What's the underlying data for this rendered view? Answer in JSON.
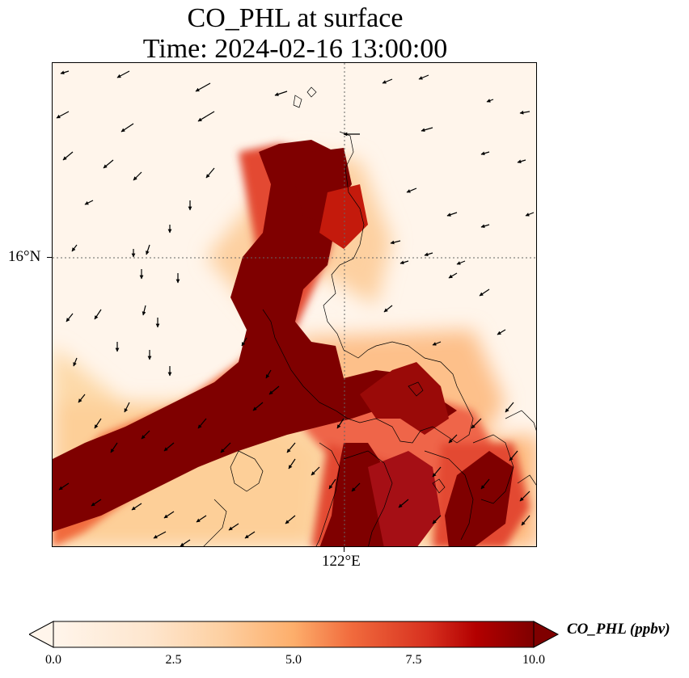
{
  "title": {
    "line1": "CO_PHL at surface",
    "line2": "Time: 2024-02-16 13:00:00"
  },
  "axes": {
    "lat_tick": "16°N",
    "lon_tick": "122°E"
  },
  "colorbar": {
    "label": "CO_PHL (ppbv)",
    "ticks": [
      "0.0",
      "2.5",
      "5.0",
      "7.5",
      "10.0"
    ],
    "min": 0,
    "max": 10,
    "extend": "both",
    "colors": [
      "#fff5eb",
      "#fdd9a8",
      "#fdae6b",
      "#f16b3d",
      "#c41a0c",
      "#7f0000"
    ]
  },
  "map": {
    "gridlines": "dotted",
    "coastline_color": "#000000",
    "vector_field": "wind arrows"
  }
}
